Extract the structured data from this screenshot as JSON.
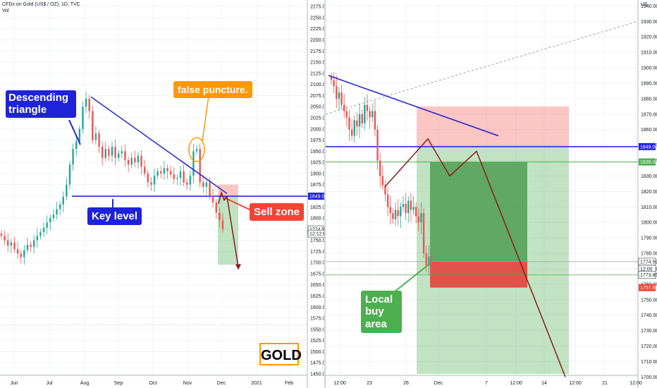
{
  "header": {
    "symbol": "CFDs on Gold (US$ / OZ), 1D, TVC",
    "vol": "Vol",
    "right_symbol_fragment": "US"
  },
  "annotations": {
    "descending_triangle": "Descending triangle",
    "false_puncture": "false puncture.",
    "key_level": "Key level",
    "sell_zone": "Sell zone",
    "local_buy_area": "Local buy area",
    "gold_badge": "GOLD"
  },
  "colors": {
    "blue_callout": "#1e22d8",
    "orange_callout": "#ff9800",
    "red_callout": "#f44336",
    "green_callout": "#4caf50",
    "trend_line": "#1c1cd8",
    "projection": "#8b1a1a"
  },
  "chart_data": [
    {
      "type": "candlestick",
      "panel": "left",
      "x_ticks": [
        "Jun",
        "Jul",
        "Aug",
        "Sep",
        "Oct",
        "Nov",
        "Dec",
        "2021",
        "Feb"
      ],
      "y_ticks": [
        2275,
        2250,
        2225,
        2200,
        2175,
        2150,
        2125,
        2100,
        2075,
        2050,
        2025,
        2000,
        1975,
        1950,
        1925,
        1900,
        1875,
        1850,
        1825,
        1800,
        1775,
        1750,
        1725,
        1700,
        1675,
        1650,
        1625,
        1600,
        1575,
        1550,
        1525,
        1500,
        1475,
        1450
      ],
      "ylim": [
        1450,
        2280
      ],
      "price_tags": [
        {
          "label": "1849.00",
          "value": 1849,
          "color": "#1e22d8"
        },
        {
          "label": "1774.59",
          "value": 1774.59,
          "color": "#ffffff"
        },
        {
          "label": "12:12:00",
          "value": 1765,
          "color": "#ffffff"
        }
      ],
      "close_series": [
        1760,
        1750,
        1738,
        1745,
        1730,
        1720,
        1712,
        1728,
        1740,
        1735,
        1750,
        1760,
        1768,
        1778,
        1790,
        1800,
        1808,
        1820,
        1830,
        1848,
        1875,
        1920,
        1955,
        1972,
        2000,
        2050,
        2068,
        2040,
        1975,
        1990,
        1960,
        1935,
        1955,
        1940,
        1960,
        1935,
        1945,
        1950,
        1930,
        1920,
        1935,
        1925,
        1940,
        1915,
        1900,
        1880,
        1875,
        1895,
        1905,
        1900,
        1912,
        1905,
        1898,
        1888,
        1890,
        1905,
        1880,
        1875,
        1895,
        1950,
        1955,
        1880,
        1870,
        1880,
        1850,
        1835,
        1812,
        1795,
        1775
      ]
    },
    {
      "type": "candlestick",
      "panel": "right",
      "x_ticks": [
        "12:00",
        "23",
        "26",
        "Dec",
        "7",
        "12:00",
        "14",
        "12:00",
        "21",
        "12:00"
      ],
      "y_ticks": [
        1940,
        1930,
        1920,
        1910,
        1900,
        1890,
        1880,
        1870,
        1860,
        1850,
        1840,
        1830,
        1820,
        1810,
        1800,
        1790,
        1780,
        1770,
        1760,
        1750,
        1740,
        1730,
        1720,
        1710,
        1700
      ],
      "ylim": [
        1702,
        1942
      ],
      "price_tags": [
        {
          "label": "1849.00",
          "value": 1849,
          "color": "#1e22d8"
        },
        {
          "label": "1839.08",
          "value": 1839.08,
          "color": "#4caf50"
        },
        {
          "label": "1774.59",
          "value": 1774.59,
          "color": "#ffffff"
        },
        {
          "label": "12:00",
          "value": 1770,
          "color": "#ffffff"
        },
        {
          "label": "1773.86",
          "value": 1766,
          "color": "#ffffff"
        },
        {
          "label": "1757.82",
          "value": 1757.82,
          "color": "#f44336"
        }
      ],
      "close_series": [
        1892,
        1888,
        1880,
        1884,
        1876,
        1872,
        1868,
        1860,
        1856,
        1866,
        1862,
        1870,
        1864,
        1876,
        1872,
        1868,
        1872,
        1860,
        1840,
        1830,
        1824,
        1818,
        1810,
        1806,
        1802,
        1808,
        1804,
        1810,
        1812,
        1806,
        1814,
        1808,
        1810,
        1804,
        1800,
        1806,
        1780,
        1772,
        1778,
        1774
      ]
    }
  ]
}
